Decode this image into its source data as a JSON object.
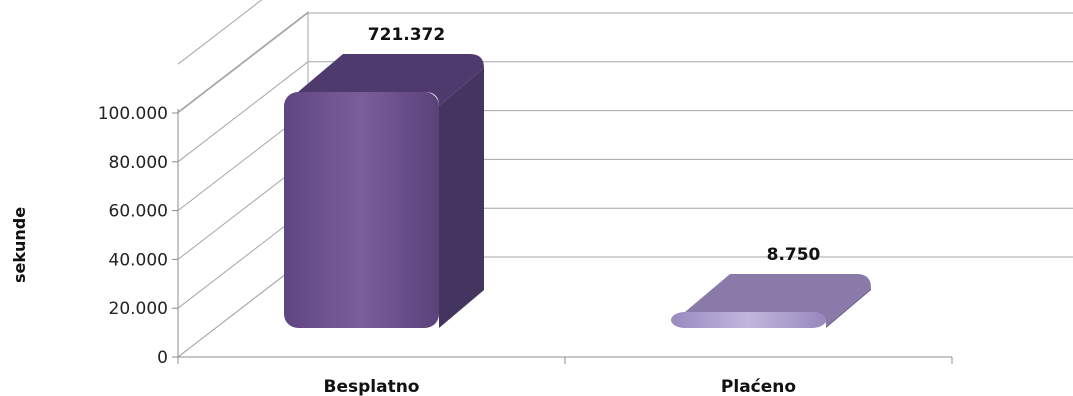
{
  "chart_data": {
    "type": "bar",
    "ylabel": "sekunde",
    "categories": [
      "Besplatno",
      "Plaćeno"
    ],
    "values": [
      721372,
      8750
    ],
    "data_labels": [
      "721.372",
      "8.750"
    ],
    "ylim": [
      0,
      100000
    ],
    "yticks": [
      0,
      20000,
      40000,
      60000,
      80000,
      100000
    ],
    "ytick_labels": [
      "0",
      "20.000",
      "40.000",
      "60.000",
      "80.000",
      "100.000"
    ],
    "grid": true,
    "colors": [
      "#6f5490",
      "#a898c8"
    ]
  }
}
